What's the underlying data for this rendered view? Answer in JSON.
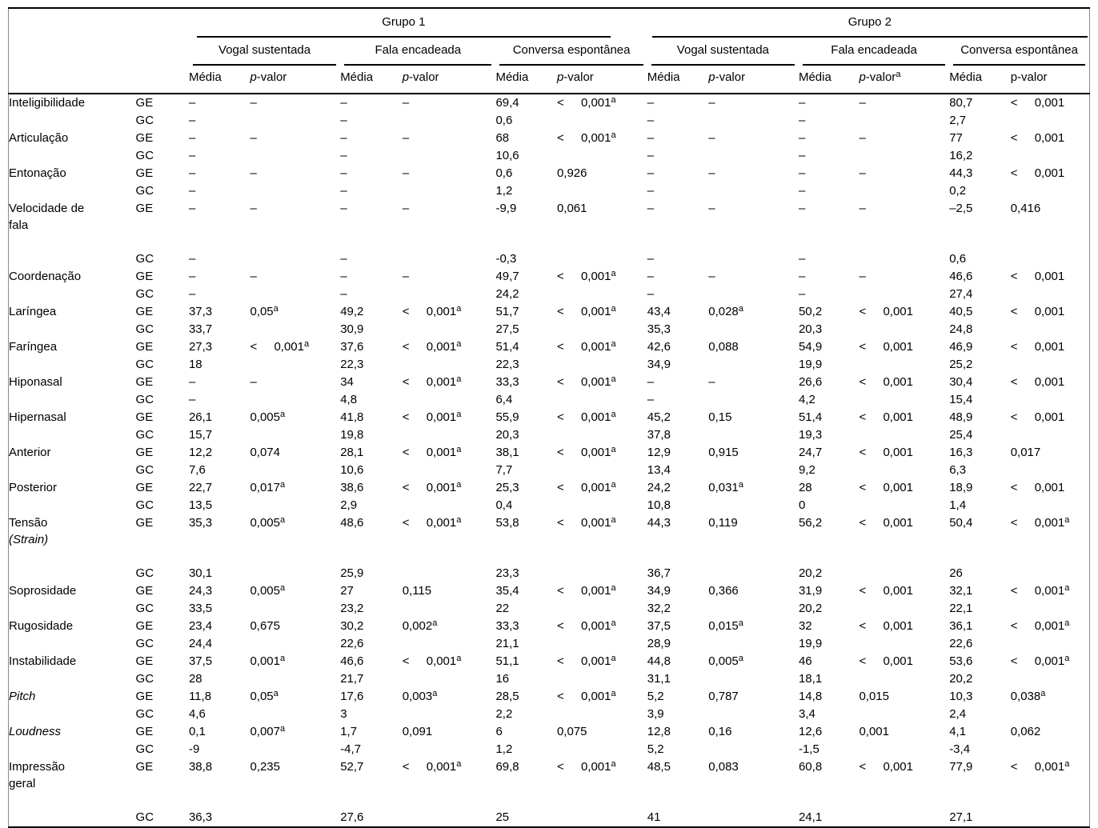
{
  "colors": {
    "rule": "#000000",
    "frame": "#8a8a8a",
    "text": "#000000",
    "background": "#ffffff"
  },
  "table": {
    "groups": [
      {
        "label": "Grupo 1"
      },
      {
        "label": "Grupo 2"
      }
    ],
    "conditions": [
      {
        "label": "Vogal sustentada"
      },
      {
        "label": "Fala encadeada"
      },
      {
        "label": "Conversa espontânea"
      },
      {
        "label": "Vogal sustentada"
      },
      {
        "label": "Fala encadeada"
      },
      {
        "label": "Conversa espontânea"
      }
    ],
    "measure_header": {
      "media": "Média",
      "pvalue": "p-valor"
    },
    "pvalue_headers": [
      {
        "italic": true,
        "sup": ""
      },
      {
        "italic": true,
        "sup": ""
      },
      {
        "italic": true,
        "sup": ""
      },
      {
        "italic": true,
        "sup": ""
      },
      {
        "italic": true,
        "sup": "a"
      },
      {
        "italic": false,
        "sup": ""
      }
    ],
    "rows": [
      {
        "label": "Inteligibilidade",
        "label2": "",
        "italic": false,
        "group": "GE",
        "cells": [
          "–",
          "–",
          "–",
          "–",
          "69,4",
          "< 0,001^a",
          "–",
          "–",
          "–",
          "–",
          "80,7",
          "< 0,001"
        ]
      },
      {
        "label": "",
        "label2": "",
        "italic": false,
        "group": "GC",
        "cells": [
          "–",
          "",
          "–",
          "",
          "0,6",
          "",
          "–",
          "",
          "–",
          "",
          "2,7",
          ""
        ]
      },
      {
        "label": "Articulação",
        "label2": "",
        "italic": false,
        "group": "GE",
        "cells": [
          "–",
          "–",
          "–",
          "–",
          "68",
          "< 0,001^a",
          "–",
          "–",
          "–",
          "–",
          "77",
          "< 0,001"
        ]
      },
      {
        "label": "",
        "label2": "",
        "italic": false,
        "group": "GC",
        "cells": [
          "–",
          "",
          "–",
          "",
          "10,6",
          "",
          "–",
          "",
          "–",
          "",
          "16,2",
          ""
        ]
      },
      {
        "label": "Entonação",
        "label2": "",
        "italic": false,
        "group": "GE",
        "cells": [
          "–",
          "–",
          "–",
          "–",
          "0,6",
          "0,926",
          "–",
          "–",
          "–",
          "–",
          "44,3",
          "< 0,001"
        ]
      },
      {
        "label": "",
        "label2": "",
        "italic": false,
        "group": "GC",
        "cells": [
          "–",
          "",
          "–",
          "",
          "1,2",
          "",
          "–",
          "",
          "–",
          "",
          "0,2",
          ""
        ]
      },
      {
        "label": "Velocidade de",
        "label2": "fala",
        "italic": false,
        "group": "GE",
        "tall": true,
        "cells": [
          "–",
          "–",
          "–",
          "–",
          "-9,9",
          "0,061",
          "–",
          "–",
          "–",
          "–",
          "–2,5",
          "0,416"
        ]
      },
      {
        "label": "",
        "label2": "",
        "italic": false,
        "group": "GC",
        "cells": [
          "–",
          "",
          "–",
          "",
          "-0,3",
          "",
          "–",
          "",
          "–",
          "",
          "0,6",
          ""
        ]
      },
      {
        "label": "Coordenação",
        "label2": "",
        "italic": false,
        "group": "GE",
        "cells": [
          "–",
          "–",
          "–",
          "–",
          "49,7",
          "< 0,001^a",
          "–",
          "–",
          "–",
          "–",
          "46,6",
          "< 0,001"
        ]
      },
      {
        "label": "",
        "label2": "",
        "italic": false,
        "group": "GC",
        "cells": [
          "–",
          "",
          "–",
          "",
          "24,2",
          "",
          "–",
          "",
          "–",
          "",
          "27,4",
          ""
        ]
      },
      {
        "label": "Laríngea",
        "label2": "",
        "italic": false,
        "group": "GE",
        "cells": [
          "37,3",
          "0,05^a",
          "49,2",
          "< 0,001^a",
          "51,7",
          "< 0,001^a",
          "43,4",
          "0,028^a",
          "50,2",
          "< 0,001",
          "40,5",
          "< 0,001"
        ]
      },
      {
        "label": "",
        "label2": "",
        "italic": false,
        "group": "GC",
        "cells": [
          "33,7",
          "",
          "30,9",
          "",
          "27,5",
          "",
          "35,3",
          "",
          "20,3",
          "",
          "24,8",
          ""
        ]
      },
      {
        "label": "Faríngea",
        "label2": "",
        "italic": false,
        "group": "GE",
        "cells": [
          "27,3",
          "< 0,001^a",
          "37,6",
          "< 0,001^a",
          "51,4",
          "< 0,001^a",
          "42,6",
          "0,088",
          "54,9",
          "< 0,001",
          "46,9",
          "< 0,001"
        ]
      },
      {
        "label": "",
        "label2": "",
        "italic": false,
        "group": "GC",
        "cells": [
          "18",
          "",
          "22,3",
          "",
          "22,3",
          "",
          "34,9",
          "",
          "19,9",
          "",
          "25,2",
          ""
        ]
      },
      {
        "label": "Hiponasal",
        "label2": "",
        "italic": false,
        "group": "GE",
        "cells": [
          "–",
          "–",
          "34",
          "< 0,001^a",
          "33,3",
          "< 0,001^a",
          "–",
          "–",
          "26,6",
          "< 0,001",
          "30,4",
          "< 0,001"
        ]
      },
      {
        "label": "",
        "label2": "",
        "italic": false,
        "group": "GC",
        "cells": [
          "–",
          "",
          "4,8",
          "",
          "6,4",
          "",
          "–",
          "",
          "4,2",
          "",
          "15,4",
          ""
        ]
      },
      {
        "label": "Hipernasal",
        "label2": "",
        "italic": false,
        "group": "GE",
        "cells": [
          "26,1",
          "0,005^a",
          "41,8",
          "< 0,001^a",
          "55,9",
          "< 0,001^a",
          "45,2",
          "0,15",
          "51,4",
          "< 0,001",
          "48,9",
          "< 0,001"
        ]
      },
      {
        "label": "",
        "label2": "",
        "italic": false,
        "group": "GC",
        "cells": [
          "15,7",
          "",
          "19,8",
          "",
          "20,3",
          "",
          "37,8",
          "",
          "19,3",
          "",
          "25,4",
          ""
        ]
      },
      {
        "label": "Anterior",
        "label2": "",
        "italic": false,
        "group": "GE",
        "cells": [
          "12,2",
          "0,074",
          "28,1",
          "< 0,001^a",
          "38,1",
          "< 0,001^a",
          "12,9",
          "0,915",
          "24,7",
          "< 0,001",
          "16,3",
          "0,017"
        ]
      },
      {
        "label": "",
        "label2": "",
        "italic": false,
        "group": "GC",
        "cells": [
          "7,6",
          "",
          "10,6",
          "",
          "7,7",
          "",
          "13,4",
          "",
          "9,2",
          "",
          "6,3",
          ""
        ]
      },
      {
        "label": "Posterior",
        "label2": "",
        "italic": false,
        "group": "GE",
        "cells": [
          "22,7",
          "0,017^a",
          "38,6",
          "< 0,001^a",
          "25,3",
          "< 0,001^a",
          "24,2",
          "0,031^a",
          "28",
          "< 0,001",
          "18,9",
          "< 0,001"
        ]
      },
      {
        "label": "",
        "label2": "",
        "italic": false,
        "group": "GC",
        "cells": [
          "13,5",
          "",
          "2,9",
          "",
          "0,4",
          "",
          "10,8",
          "",
          "0",
          "",
          "1,4",
          ""
        ]
      },
      {
        "label": "Tensão",
        "label2": "(Strain)",
        "label2_italic": true,
        "italic": false,
        "group": "GE",
        "tall": true,
        "cells": [
          "35,3",
          "0,005^a",
          "48,6",
          "< 0,001^a",
          "53,8",
          "< 0,001^a",
          "44,3",
          "0,119",
          "56,2",
          "< 0,001",
          "50,4",
          "< 0,001^a"
        ]
      },
      {
        "label": "",
        "label2": "",
        "italic": false,
        "group": "GC",
        "cells": [
          "30,1",
          "",
          "25,9",
          "",
          "23,3",
          "",
          "36,7",
          "",
          "20,2",
          "",
          "26",
          ""
        ]
      },
      {
        "label": "Soprosidade",
        "label2": "",
        "italic": false,
        "group": "GE",
        "cells": [
          "24,3",
          "0,005^a",
          "27",
          "0,115",
          "35,4",
          "< 0,001^a",
          "34,9",
          "0,366",
          "31,9",
          "< 0,001",
          "32,1",
          "< 0,001^a"
        ]
      },
      {
        "label": "",
        "label2": "",
        "italic": false,
        "group": "GC",
        "cells": [
          "33,5",
          "",
          "23,2",
          "",
          "22",
          "",
          "32,2",
          "",
          "20,2",
          "",
          "22,1",
          ""
        ]
      },
      {
        "label": "Rugosidade",
        "label2": "",
        "italic": false,
        "group": "GE",
        "cells": [
          "23,4",
          "0,675",
          "30,2",
          "0,002^a",
          "33,3",
          "< 0,001^a",
          "37,5",
          "0,015^a",
          "32",
          "< 0,001",
          "36,1",
          "< 0,001^a"
        ]
      },
      {
        "label": "",
        "label2": "",
        "italic": false,
        "group": "GC",
        "cells": [
          "24,4",
          "",
          "22,6",
          "",
          "21,1",
          "",
          "28,9",
          "",
          "19,9",
          "",
          "22,6",
          ""
        ]
      },
      {
        "label": "Instabilidade",
        "label2": "",
        "italic": false,
        "group": "GE",
        "cells": [
          "37,5",
          "0,001^a",
          "46,6",
          "< 0,001^a",
          "51,1",
          "< 0,001^a",
          "44,8",
          "0,005^a",
          "46",
          "< 0,001",
          "53,6",
          "< 0,001^a"
        ]
      },
      {
        "label": "",
        "label2": "",
        "italic": false,
        "group": "GC",
        "cells": [
          "28",
          "",
          "21,7",
          "",
          "16",
          "",
          "31,1",
          "",
          "18,1",
          "",
          "20,2",
          ""
        ]
      },
      {
        "label": "Pitch",
        "label2": "",
        "italic": true,
        "group": "GE",
        "cells": [
          "11,8",
          "0,05^a",
          "17,6",
          "0,003^a",
          "28,5",
          "< 0,001^a",
          "5,2",
          "0,787",
          "14,8",
          "0,015",
          "10,3",
          "0,038^a"
        ]
      },
      {
        "label": "",
        "label2": "",
        "italic": false,
        "group": "GC",
        "cells": [
          "4,6",
          "",
          "3",
          "",
          "2,2",
          "",
          "3,9",
          "",
          "3,4",
          "",
          "2,4",
          ""
        ]
      },
      {
        "label": "Loudness",
        "label2": "",
        "italic": true,
        "group": "GE",
        "cells": [
          "0,1",
          "0,007^a",
          "1,7",
          "0,091",
          "6",
          "0,075",
          "12,8",
          "0,16",
          "12,6",
          "0,001",
          "4,1",
          "0,062"
        ]
      },
      {
        "label": "",
        "label2": "",
        "italic": false,
        "group": "GC",
        "cells": [
          "-9",
          "",
          "-4,7",
          "",
          "1,2",
          "",
          "5,2",
          "",
          "-1,5",
          "",
          "-3,4",
          ""
        ]
      },
      {
        "label": "Impressão",
        "label2": "geral",
        "italic": false,
        "group": "GE",
        "tall": true,
        "cells": [
          "38,8",
          "0,235",
          "52,7",
          "< 0,001^a",
          "69,8",
          "< 0,001^a",
          "48,5",
          "0,083",
          "60,8",
          "< 0,001",
          "77,9",
          "< 0,001^a"
        ]
      },
      {
        "label": "",
        "label2": "",
        "italic": false,
        "group": "GC",
        "cells": [
          "36,3",
          "",
          "27,6",
          "",
          "25",
          "",
          "41",
          "",
          "24,1",
          "",
          "27,1",
          ""
        ]
      }
    ]
  }
}
